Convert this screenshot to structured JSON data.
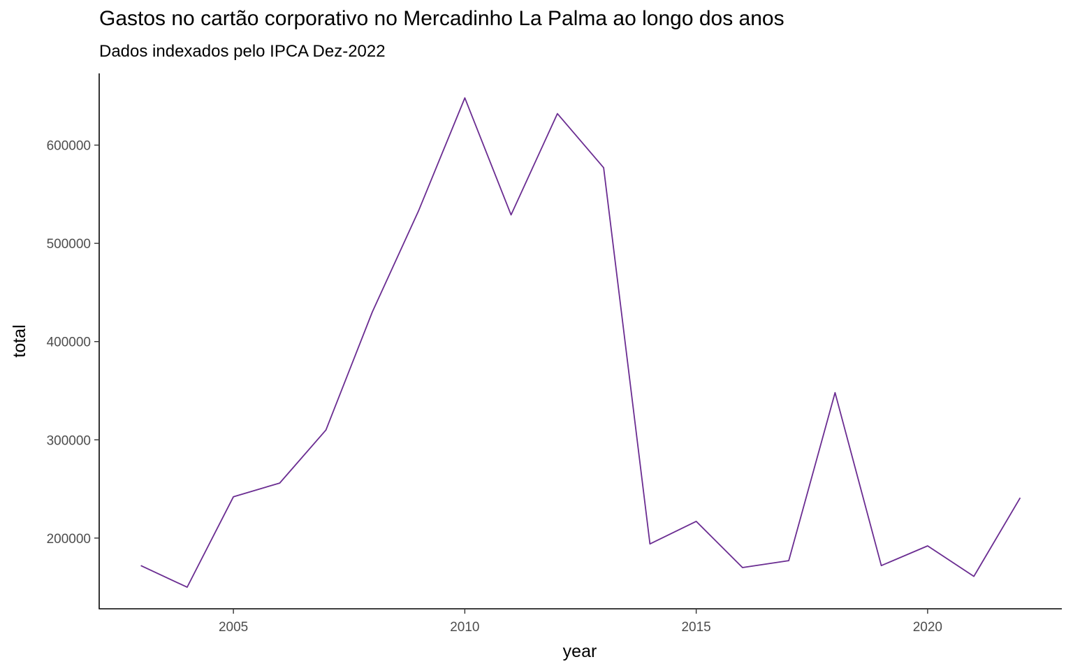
{
  "chart_data": {
    "type": "line",
    "title": "Gastos no cartão corporativo no Mercadinho La Palma ao longo dos anos",
    "subtitle": "Dados indexados pelo IPCA Dez-2022",
    "xlabel": "year",
    "ylabel": "total",
    "x": [
      2003,
      2004,
      2005,
      2006,
      2007,
      2008,
      2009,
      2010,
      2011,
      2012,
      2013,
      2014,
      2015,
      2016,
      2017,
      2018,
      2019,
      2020,
      2021,
      2022
    ],
    "series": [
      {
        "values": [
          172000,
          150000,
          242000,
          256000,
          310000,
          430000,
          533000,
          648000,
          529000,
          632000,
          577000,
          194000,
          217000,
          170000,
          177000,
          348000,
          172000,
          192000,
          161000,
          241000
        ]
      }
    ],
    "xlim": [
      2002.1,
      2022.9
    ],
    "ylim": [
      128000,
      673000
    ],
    "x_ticks": [
      2005,
      2010,
      2015,
      2020
    ],
    "x_tick_labels": [
      "2005",
      "2010",
      "2015",
      "2020"
    ],
    "y_ticks": [
      200000,
      300000,
      400000,
      500000,
      600000
    ],
    "y_tick_labels": [
      "200000",
      "300000",
      "400000",
      "500000",
      "600000"
    ],
    "grid": false,
    "legend": "none",
    "line_color": "#6a2c91"
  }
}
